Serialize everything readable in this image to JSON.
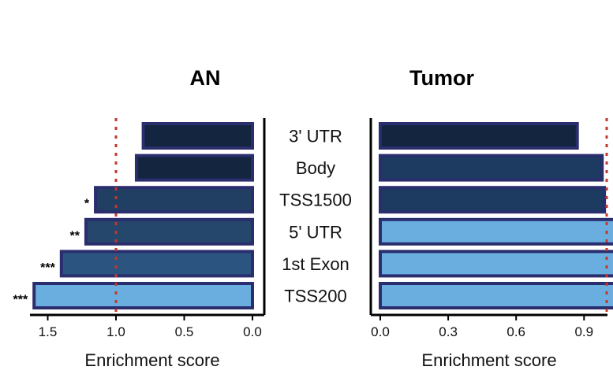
{
  "chart_data": [
    {
      "type": "bar",
      "orientation": "horizontal",
      "title": "AN",
      "xlabel": "Enrichment score",
      "categories": [
        "3' UTR",
        "Body",
        "TSS1500",
        "5' UTR",
        "1st Exon",
        "TSS200"
      ],
      "values": [
        0.8,
        0.85,
        1.15,
        1.22,
        1.4,
        1.6
      ],
      "colors": [
        "#14253f",
        "#14253f",
        "#213f63",
        "#26476c",
        "#2c5480",
        "#6aaee0"
      ],
      "significance": [
        "",
        "",
        "*",
        "**",
        "***",
        "***"
      ],
      "x_reversed": true,
      "xlim": [
        0,
        1.65
      ],
      "xticks": [
        1.5,
        1.0,
        0.5,
        0.0
      ],
      "xtick_labels": [
        "1.5",
        "1.0",
        "0.5",
        "0.0"
      ],
      "reference_line": 1.0,
      "reference_color": "#c0392b"
    },
    {
      "type": "bar",
      "orientation": "horizontal",
      "title": "Tumor",
      "xlabel": "Enrichment score",
      "categories": [
        "3' UTR",
        "Body",
        "TSS1500",
        "5' UTR",
        "1st Exon",
        "TSS200"
      ],
      "values": [
        0.87,
        0.98,
        0.99,
        1.04,
        1.06,
        1.08
      ],
      "colors": [
        "#14253f",
        "#1d3a60",
        "#1d3a60",
        "#6aaee0",
        "#6aaee0",
        "#6aaee0"
      ],
      "significance": [
        "",
        "",
        "",
        "",
        "",
        ""
      ],
      "x_reversed": false,
      "xlim": [
        0,
        1.1
      ],
      "xticks": [
        0.0,
        0.3,
        0.6,
        0.9
      ],
      "xtick_labels": [
        "0.0",
        "0.3",
        "0.6",
        "0.9"
      ],
      "reference_line": 1.0,
      "reference_color": "#c0392b"
    }
  ],
  "colors": {
    "bar_border": "#2a2d6e",
    "axis": "#000000"
  }
}
